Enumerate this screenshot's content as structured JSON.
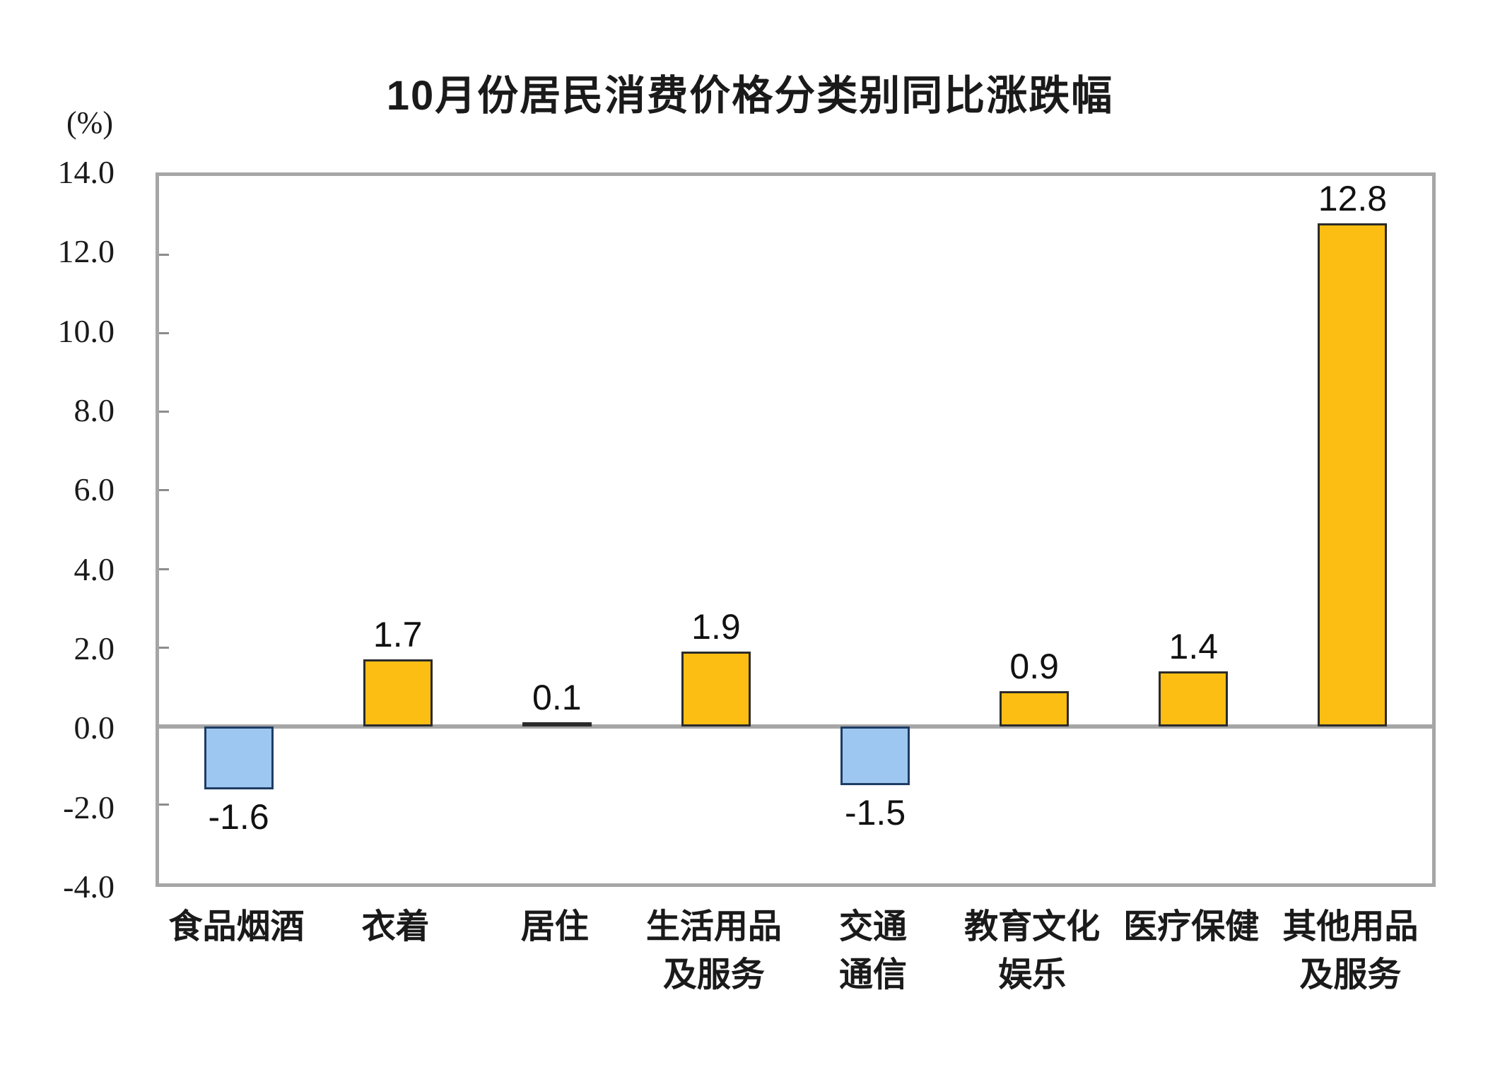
{
  "chart_data": {
    "type": "bar",
    "title": "10月份居民消费价格分类别同比涨跌幅",
    "unit_label": "(%)",
    "categories": [
      "食品烟酒",
      "衣着",
      "居住",
      "生活用品\n及服务",
      "交通\n通信",
      "教育文化\n娱乐",
      "医疗保健",
      "其他用品\n及服务"
    ],
    "values": [
      -1.6,
      1.7,
      0.1,
      1.9,
      -1.5,
      0.9,
      1.4,
      12.8
    ],
    "value_labels": [
      "-1.6",
      "1.7",
      "0.1",
      "1.9",
      "-1.5",
      "0.9",
      "1.4",
      "12.8"
    ],
    "ylim": [
      -4.0,
      14.0
    ],
    "y_tick_labels": [
      "14.0",
      "12.0",
      "10.0",
      "8.0",
      "6.0",
      "4.0",
      "2.0",
      "0.0",
      "-2.0",
      "-4.0"
    ],
    "y_tick_values": [
      14.0,
      12.0,
      10.0,
      8.0,
      6.0,
      4.0,
      2.0,
      0.0,
      -2.0,
      -4.0
    ],
    "grid": false,
    "legend_position": "none",
    "colors": {
      "positive_fill": "#FCBE13",
      "positive_border": "#2B2B2B",
      "negative_fill": "#9DC7F0",
      "negative_border": "#1E3C64",
      "axis_line": "#A6A6A6",
      "tick_mark": "#8C8C8C",
      "text": "#1a1a1a"
    }
  }
}
